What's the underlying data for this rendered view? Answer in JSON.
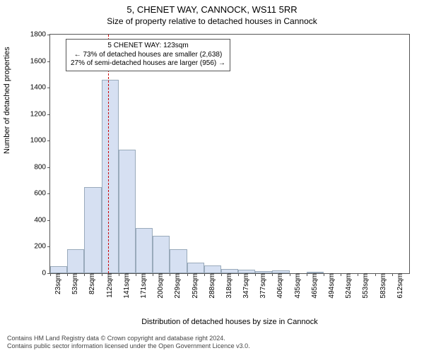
{
  "titles": {
    "main": "5, CHENET WAY, CANNOCK, WS11 5RR",
    "sub": "Size of property relative to detached houses in Cannock"
  },
  "axes": {
    "ylabel": "Number of detached properties",
    "xlabel": "Distribution of detached houses by size in Cannock"
  },
  "chart": {
    "type": "histogram",
    "ymin": 0,
    "ymax": 1800,
    "ytick_step": 200,
    "xticks": [
      "23sqm",
      "53sqm",
      "82sqm",
      "112sqm",
      "141sqm",
      "171sqm",
      "200sqm",
      "229sqm",
      "259sqm",
      "288sqm",
      "318sqm",
      "347sqm",
      "377sqm",
      "406sqm",
      "435sqm",
      "465sqm",
      "494sqm",
      "524sqm",
      "553sqm",
      "583sqm",
      "612sqm"
    ],
    "bar_values": [
      55,
      180,
      650,
      1460,
      930,
      340,
      280,
      180,
      80,
      60,
      30,
      25,
      15,
      20,
      0,
      10,
      0,
      0,
      0,
      0,
      0
    ],
    "bar_color": "#d6e0f2",
    "bar_border": "#99aabb",
    "axis_color": "#555555",
    "background": "#ffffff",
    "marker_line_color": "#cc0000",
    "marker_line_x_index": 3.4
  },
  "annotation": {
    "line1": "5 CHENET WAY: 123sqm",
    "line2": "← 73% of detached houses are smaller (2,638)",
    "line3": "27% of semi-detached houses are larger (956) →"
  },
  "footnote": {
    "line1": "Contains HM Land Registry data © Crown copyright and database right 2024.",
    "line2": "Contains public sector information licensed under the Open Government Licence v3.0."
  }
}
